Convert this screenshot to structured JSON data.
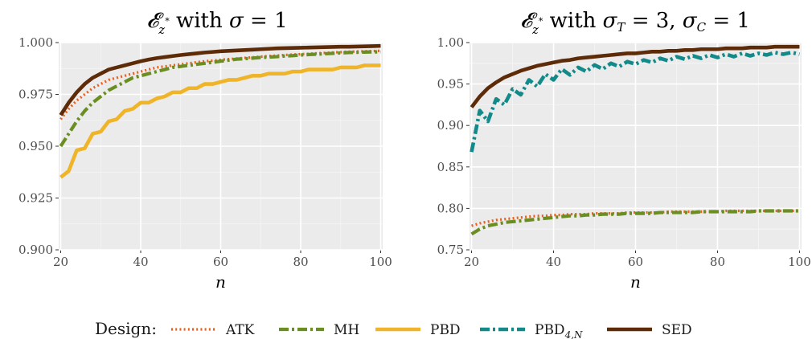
{
  "legend": {
    "title": "Design:",
    "entries": [
      {
        "name": "ATK",
        "color": "#e8601c",
        "dash": "dotted"
      },
      {
        "name": "MH",
        "color": "#6b8e23",
        "dash": "dashdot"
      },
      {
        "name": "PBD",
        "color": "#f0b429",
        "dash": "solid"
      },
      {
        "name": "PBD",
        "sub": "4,N",
        "color": "#138a8a",
        "dash": "dashdot2"
      },
      {
        "name": "SED",
        "color": "#5e2b08",
        "dash": "solid"
      }
    ],
    "placement": "bottom"
  },
  "chart_data": [
    {
      "type": "line",
      "title": "𝓔z* with σ = 1",
      "xlabel": "n",
      "ylabel": "",
      "xlim": [
        19.5,
        100.5
      ],
      "ylim": [
        0.9,
        1.0
      ],
      "xticks": [
        20,
        40,
        60,
        80,
        100
      ],
      "yticks": [
        0.9,
        0.925,
        0.95,
        0.975,
        1.0
      ],
      "ytick_labels": [
        "0.900",
        "0.925",
        "0.950",
        "0.975",
        "1.000"
      ],
      "grid": true,
      "x": [
        20,
        22,
        24,
        26,
        28,
        30,
        32,
        34,
        36,
        38,
        40,
        42,
        44,
        46,
        48,
        50,
        52,
        54,
        56,
        58,
        60,
        62,
        64,
        66,
        68,
        70,
        72,
        74,
        76,
        78,
        80,
        82,
        84,
        86,
        88,
        90,
        92,
        94,
        96,
        98,
        100
      ],
      "series": [
        {
          "name": "ATK",
          "values": [
            0.963,
            0.968,
            0.972,
            0.975,
            0.978,
            0.98,
            0.982,
            0.983,
            0.984,
            0.985,
            0.986,
            0.987,
            0.988,
            0.9885,
            0.989,
            0.9895,
            0.99,
            0.9905,
            0.991,
            0.9913,
            0.9917,
            0.992,
            0.9923,
            0.9926,
            0.9929,
            0.9932,
            0.9935,
            0.9937,
            0.994,
            0.9942,
            0.9944,
            0.9946,
            0.9948,
            0.995,
            0.9952,
            0.9954,
            0.9956,
            0.9957,
            0.9958,
            0.9959,
            0.996
          ]
        },
        {
          "name": "MH",
          "values": [
            0.95,
            0.956,
            0.962,
            0.967,
            0.971,
            0.974,
            0.977,
            0.979,
            0.981,
            0.983,
            0.984,
            0.985,
            0.986,
            0.987,
            0.988,
            0.9885,
            0.989,
            0.9895,
            0.99,
            0.9905,
            0.991,
            0.9915,
            0.992,
            0.9922,
            0.9925,
            0.9928,
            0.993,
            0.9932,
            0.9935,
            0.9937,
            0.994,
            0.9942,
            0.9944,
            0.9946,
            0.9948,
            0.995,
            0.9952,
            0.9953,
            0.9954,
            0.9955,
            0.9955
          ]
        },
        {
          "name": "PBD",
          "values": [
            0.935,
            0.938,
            0.948,
            0.949,
            0.956,
            0.957,
            0.962,
            0.963,
            0.967,
            0.968,
            0.971,
            0.971,
            0.973,
            0.974,
            0.976,
            0.976,
            0.978,
            0.978,
            0.98,
            0.98,
            0.981,
            0.982,
            0.982,
            0.983,
            0.984,
            0.984,
            0.985,
            0.985,
            0.985,
            0.986,
            0.986,
            0.987,
            0.987,
            0.987,
            0.987,
            0.988,
            0.988,
            0.988,
            0.989,
            0.989,
            0.989
          ]
        },
        {
          "name": "SED",
          "values": [
            0.965,
            0.971,
            0.976,
            0.98,
            0.983,
            0.985,
            0.987,
            0.988,
            0.989,
            0.99,
            0.991,
            0.9918,
            0.9925,
            0.993,
            0.9935,
            0.994,
            0.9944,
            0.9948,
            0.9952,
            0.9955,
            0.9958,
            0.996,
            0.9962,
            0.9964,
            0.9966,
            0.9968,
            0.997,
            0.9972,
            0.9973,
            0.9974,
            0.9975,
            0.9976,
            0.9977,
            0.9978,
            0.9979,
            0.998,
            0.998,
            0.9981,
            0.9982,
            0.9983,
            0.9984
          ]
        }
      ]
    },
    {
      "type": "line",
      "title": "𝓔z* with σT = 3, σC = 1",
      "xlabel": "n",
      "ylabel": "",
      "xlim": [
        19.5,
        100.5
      ],
      "ylim": [
        0.75,
        1.0
      ],
      "xticks": [
        20,
        40,
        60,
        80,
        100
      ],
      "yticks": [
        0.75,
        0.8,
        0.85,
        0.9,
        0.95,
        1.0
      ],
      "ytick_labels": [
        "0.75",
        "0.80",
        "0.85",
        "0.90",
        "0.95",
        "1.00"
      ],
      "grid": true,
      "x": [
        20,
        22,
        24,
        26,
        28,
        30,
        32,
        34,
        36,
        38,
        40,
        42,
        44,
        46,
        48,
        50,
        52,
        54,
        56,
        58,
        60,
        62,
        64,
        66,
        68,
        70,
        72,
        74,
        76,
        78,
        80,
        82,
        84,
        86,
        88,
        90,
        92,
        94,
        96,
        98,
        100
      ],
      "series": [
        {
          "name": "ATK",
          "values": [
            0.779,
            0.782,
            0.784,
            0.786,
            0.787,
            0.788,
            0.789,
            0.79,
            0.791,
            0.791,
            0.792,
            0.792,
            0.793,
            0.793,
            0.793,
            0.794,
            0.794,
            0.794,
            0.794,
            0.795,
            0.795,
            0.795,
            0.795,
            0.795,
            0.796,
            0.796,
            0.796,
            0.796,
            0.796,
            0.796,
            0.796,
            0.797,
            0.797,
            0.797,
            0.797,
            0.797,
            0.797,
            0.797,
            0.797,
            0.797,
            0.797
          ]
        },
        {
          "name": "MH",
          "values": [
            0.769,
            0.775,
            0.779,
            0.781,
            0.783,
            0.784,
            0.785,
            0.786,
            0.787,
            0.788,
            0.789,
            0.79,
            0.791,
            0.791,
            0.792,
            0.792,
            0.793,
            0.793,
            0.793,
            0.794,
            0.794,
            0.794,
            0.794,
            0.795,
            0.795,
            0.795,
            0.795,
            0.795,
            0.796,
            0.796,
            0.796,
            0.796,
            0.796,
            0.796,
            0.796,
            0.797,
            0.797,
            0.797,
            0.797,
            0.797,
            0.797
          ]
        },
        {
          "name": "PBD4,N",
          "values": [
            0.868,
            0.918,
            0.905,
            0.932,
            0.925,
            0.944,
            0.937,
            0.955,
            0.947,
            0.962,
            0.955,
            0.968,
            0.961,
            0.97,
            0.965,
            0.973,
            0.968,
            0.975,
            0.971,
            0.977,
            0.974,
            0.979,
            0.976,
            0.981,
            0.978,
            0.983,
            0.98,
            0.984,
            0.981,
            0.985,
            0.982,
            0.986,
            0.983,
            0.987,
            0.984,
            0.987,
            0.985,
            0.988,
            0.986,
            0.988,
            0.986
          ]
        },
        {
          "name": "SED",
          "values": [
            0.922,
            0.935,
            0.945,
            0.952,
            0.958,
            0.962,
            0.966,
            0.969,
            0.972,
            0.974,
            0.976,
            0.978,
            0.979,
            0.981,
            0.982,
            0.983,
            0.984,
            0.985,
            0.986,
            0.987,
            0.987,
            0.988,
            0.989,
            0.989,
            0.99,
            0.99,
            0.991,
            0.991,
            0.992,
            0.992,
            0.992,
            0.993,
            0.993,
            0.993,
            0.994,
            0.994,
            0.994,
            0.995,
            0.995,
            0.995,
            0.995
          ]
        }
      ]
    }
  ]
}
